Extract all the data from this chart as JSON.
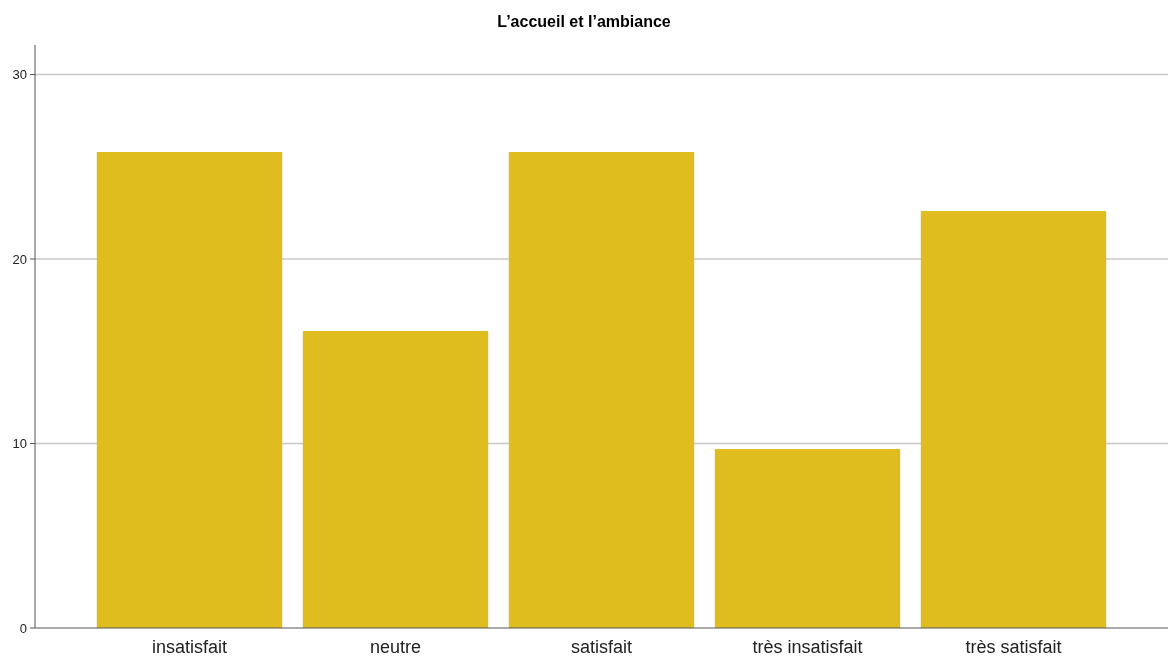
{
  "chart_data": {
    "type": "bar",
    "title": "L’accueil et l’ambiance",
    "categories": [
      "insatisfait",
      "neutre",
      "satisfait",
      "très insatisfait",
      "très satisfait"
    ],
    "values": [
      25.8,
      16.1,
      25.8,
      9.7,
      22.6
    ],
    "color": "#e0bd1f",
    "ylim": [
      0,
      31.6
    ],
    "yticks": [
      0,
      10,
      20,
      30
    ],
    "grid": "y"
  }
}
